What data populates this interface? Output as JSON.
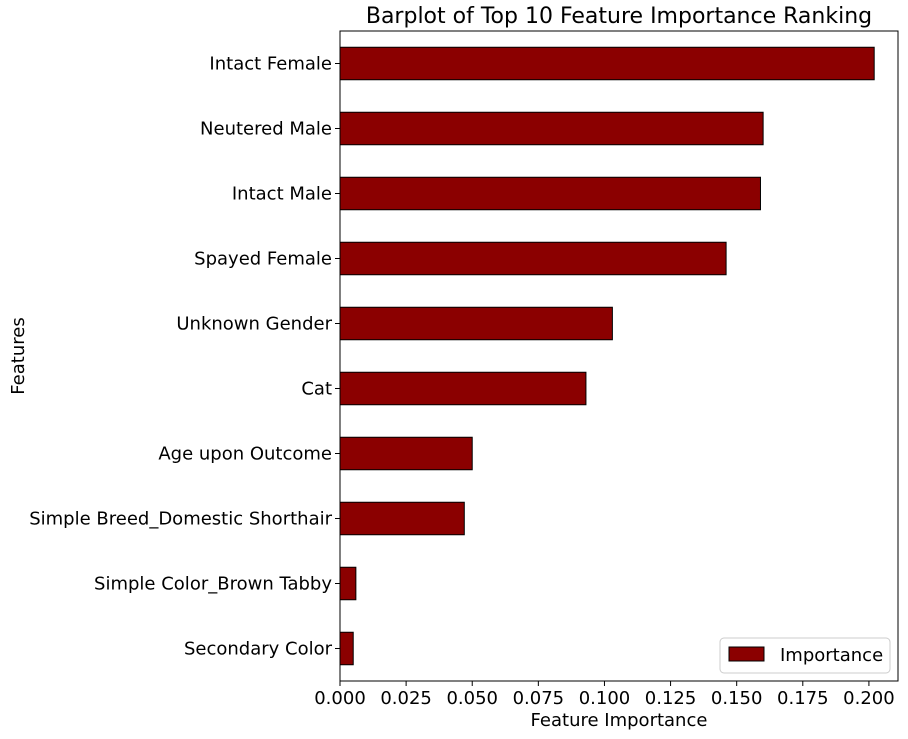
{
  "chart_data": {
    "type": "bar",
    "orientation": "horizontal",
    "title": "Barplot of Top 10 Feature Importance Ranking",
    "xlabel": "Feature Importance",
    "ylabel": "Features",
    "xlim": [
      0.0,
      0.211
    ],
    "xticks": [
      0.0,
      0.025,
      0.05,
      0.075,
      0.1,
      0.125,
      0.15,
      0.175,
      0.2
    ],
    "xtick_labels": [
      "0.000",
      "0.025",
      "0.050",
      "0.075",
      "0.100",
      "0.125",
      "0.150",
      "0.175",
      "0.200"
    ],
    "categories": [
      "Intact Female",
      "Neutered Male",
      "Intact Male",
      "Spayed Female",
      "Unknown Gender",
      "Cat",
      "Age upon Outcome",
      "Simple Breed_Domestic Shorthair",
      "Simple Color_Brown Tabby",
      "Secondary Color"
    ],
    "series": [
      {
        "name": "Importance",
        "color": "#8b0000",
        "values": [
          0.202,
          0.16,
          0.159,
          0.146,
          0.103,
          0.093,
          0.05,
          0.047,
          0.006,
          0.005
        ]
      }
    ],
    "legend": {
      "position": "lower-right",
      "entries": [
        "Importance"
      ]
    },
    "grid": false
  }
}
